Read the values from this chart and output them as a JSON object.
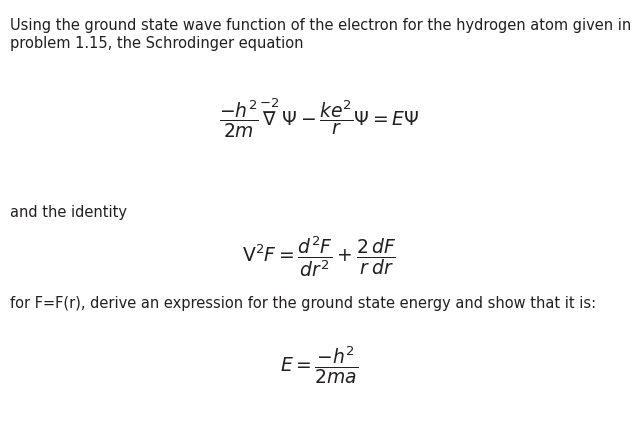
{
  "background_color": "#ffffff",
  "text_color": "#231f20",
  "fig_width": 6.39,
  "fig_height": 4.24,
  "dpi": 100,
  "line1": "Using the ground state wave function of the electron for the hydrogen atom given in",
  "line2": "problem 1.15, the Schrodinger equation",
  "line3": "and the identity",
  "line4": "for F=F(r), derive an expression for the ground state energy and show that it is:",
  "body_fontsize": 10.5,
  "eq_fontsize": 13.5
}
